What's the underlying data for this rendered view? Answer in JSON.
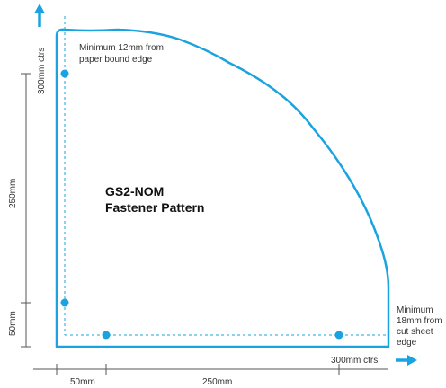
{
  "colors": {
    "outline": "#1aa3e0",
    "dimension": "#333333",
    "arrow": "#1aa3e0",
    "text": "#333333"
  },
  "title": {
    "line1": "GS2-NOM",
    "line2": "Fastener Pattern"
  },
  "annotations": {
    "top_note_line1": "Minimum 12mm from",
    "top_note_line2": "paper bound edge",
    "right_note_line1": "Minimum",
    "right_note_line2": "18mm from",
    "right_note_line3": "cut sheet",
    "right_note_line4": "edge"
  },
  "dimensions": {
    "vertical_top": "300mm ctrs",
    "vertical_mid": "250mm",
    "vertical_bottom": "50mm",
    "horizontal_left": "50mm",
    "horizontal_mid": "250mm",
    "horizontal_right": "300mm ctrs"
  },
  "icons": {
    "up_arrow": "arrow-up-icon",
    "right_arrow": "arrow-right-icon"
  }
}
